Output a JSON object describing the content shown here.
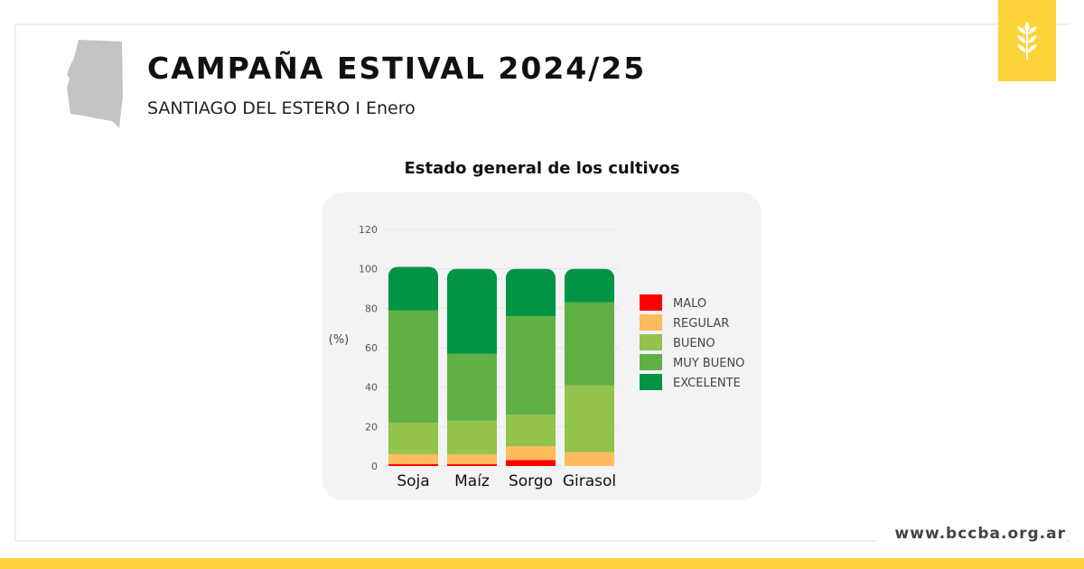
{
  "header": {
    "title": "CAMPAÑA ESTIVAL 2024/25",
    "subtitle": "SANTIAGO DEL ESTERO I Enero"
  },
  "footer": {
    "url": "www.bccba.org.ar"
  },
  "badge": {
    "icon": "wheat-icon",
    "color": "#fdd33a"
  },
  "chart_data": {
    "type": "bar",
    "stacked": true,
    "title": "Estado general de los cultivos",
    "xlabel": "",
    "ylabel": "(%)",
    "ylim": [
      0,
      120
    ],
    "yticks": [
      0,
      20,
      40,
      60,
      80,
      100,
      120
    ],
    "grid": true,
    "legend": "right",
    "categories": [
      "Soja",
      "Maíz",
      "Sorgo",
      "Girasol"
    ],
    "series": [
      {
        "name": "MALO",
        "color": "#ff0000",
        "values": [
          1,
          1,
          3,
          0
        ]
      },
      {
        "name": "REGULAR",
        "color": "#ffbb5c",
        "values": [
          5,
          5,
          7,
          7
        ]
      },
      {
        "name": "BUENO",
        "color": "#93c24d",
        "values": [
          16,
          17,
          16,
          34
        ]
      },
      {
        "name": "MUY BUENO",
        "color": "#60b045",
        "values": [
          57,
          34,
          50,
          42
        ]
      },
      {
        "name": "EXCELENTE",
        "color": "#019444",
        "values": [
          22,
          43,
          24,
          17
        ]
      }
    ]
  }
}
